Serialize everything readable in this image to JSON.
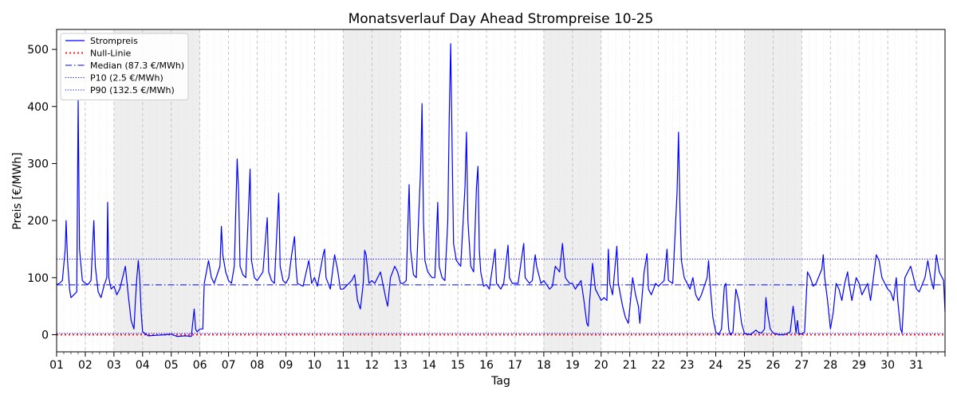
{
  "chart_data": {
    "type": "line",
    "title": "Monatsverlauf Day Ahead Strompreise 10-25",
    "xlabel": "Tag",
    "ylabel": "Preis [€/MWh]",
    "xlim": [
      1,
      32
    ],
    "ylim": [
      -30,
      535
    ],
    "x_tick_labels": [
      "01",
      "02",
      "03",
      "04",
      "05",
      "06",
      "07",
      "08",
      "09",
      "10",
      "11",
      "12",
      "13",
      "14",
      "15",
      "16",
      "17",
      "18",
      "19",
      "20",
      "21",
      "22",
      "23",
      "24",
      "25",
      "26",
      "27",
      "28",
      "29",
      "30",
      "31"
    ],
    "y_ticks": [
      0,
      100,
      200,
      300,
      400,
      500
    ],
    "grid": true,
    "legend_position": "top-left",
    "weekend_spans": [
      [
        3,
        6
      ],
      [
        11,
        13
      ],
      [
        18,
        20
      ],
      [
        25,
        27
      ]
    ],
    "colors": {
      "series": "#0000ff",
      "null_line": "#ff0000",
      "weekend_shade": "#d9d9d9",
      "grid": "#cccccc"
    },
    "reference_lines": [
      {
        "name": "Null-Linie",
        "value": 0,
        "style": "dotted",
        "color": "#ff0000"
      },
      {
        "name": "Median (87.3 €/MWh)",
        "value": 87.3,
        "style": "dashdot",
        "color": "#0000ff"
      },
      {
        "name": "P10 (2.5 €/MWh)",
        "value": 2.5,
        "style": "dotted",
        "color": "#0000ff"
      },
      {
        "name": "P90 (132.5 €/MWh)",
        "value": 132.5,
        "style": "dotted",
        "color": "#0000ff"
      }
    ],
    "series": [
      {
        "name": "Strompreis",
        "points": [
          [
            1.0,
            88
          ],
          [
            1.1,
            90
          ],
          [
            1.2,
            95
          ],
          [
            1.3,
            150
          ],
          [
            1.33,
            200
          ],
          [
            1.38,
            130
          ],
          [
            1.45,
            80
          ],
          [
            1.5,
            65
          ],
          [
            1.6,
            70
          ],
          [
            1.7,
            75
          ],
          [
            1.72,
            200
          ],
          [
            1.75,
            410
          ],
          [
            1.8,
            150
          ],
          [
            1.9,
            95
          ],
          [
            2.0,
            90
          ],
          [
            2.1,
            88
          ],
          [
            2.2,
            95
          ],
          [
            2.3,
            200
          ],
          [
            2.35,
            120
          ],
          [
            2.45,
            75
          ],
          [
            2.55,
            65
          ],
          [
            2.65,
            85
          ],
          [
            2.75,
            100
          ],
          [
            2.78,
            232
          ],
          [
            2.82,
            100
          ],
          [
            2.9,
            80
          ],
          [
            3.0,
            85
          ],
          [
            3.1,
            70
          ],
          [
            3.2,
            80
          ],
          [
            3.3,
            100
          ],
          [
            3.4,
            120
          ],
          [
            3.5,
            70
          ],
          [
            3.6,
            25
          ],
          [
            3.7,
            10
          ],
          [
            3.75,
            60
          ],
          [
            3.8,
            100
          ],
          [
            3.85,
            130
          ],
          [
            3.9,
            100
          ],
          [
            3.95,
            40
          ],
          [
            4.0,
            5
          ],
          [
            4.2,
            -2
          ],
          [
            4.5,
            -1
          ],
          [
            4.8,
            0
          ],
          [
            5.0,
            1
          ],
          [
            5.2,
            -3
          ],
          [
            5.5,
            -2
          ],
          [
            5.7,
            -3
          ],
          [
            5.8,
            45
          ],
          [
            5.85,
            10
          ],
          [
            5.9,
            5
          ],
          [
            6.0,
            10
          ],
          [
            6.1,
            10
          ],
          [
            6.15,
            90
          ],
          [
            6.3,
            130
          ],
          [
            6.4,
            100
          ],
          [
            6.5,
            90
          ],
          [
            6.7,
            120
          ],
          [
            6.75,
            190
          ],
          [
            6.8,
            140
          ],
          [
            6.9,
            110
          ],
          [
            7.0,
            95
          ],
          [
            7.1,
            90
          ],
          [
            7.2,
            120
          ],
          [
            7.3,
            308
          ],
          [
            7.35,
            250
          ],
          [
            7.4,
            120
          ],
          [
            7.5,
            105
          ],
          [
            7.6,
            100
          ],
          [
            7.75,
            290
          ],
          [
            7.8,
            130
          ],
          [
            7.9,
            100
          ],
          [
            8.0,
            95
          ],
          [
            8.2,
            110
          ],
          [
            8.35,
            205
          ],
          [
            8.4,
            110
          ],
          [
            8.5,
            95
          ],
          [
            8.6,
            90
          ],
          [
            8.75,
            248
          ],
          [
            8.8,
            120
          ],
          [
            8.9,
            95
          ],
          [
            9.0,
            90
          ],
          [
            9.1,
            100
          ],
          [
            9.2,
            140
          ],
          [
            9.3,
            172
          ],
          [
            9.35,
            120
          ],
          [
            9.4,
            90
          ],
          [
            9.6,
            85
          ],
          [
            9.8,
            130
          ],
          [
            9.9,
            90
          ],
          [
            10.0,
            100
          ],
          [
            10.1,
            85
          ],
          [
            10.3,
            140
          ],
          [
            10.35,
            150
          ],
          [
            10.4,
            100
          ],
          [
            10.55,
            80
          ],
          [
            10.7,
            140
          ],
          [
            10.8,
            115
          ],
          [
            10.9,
            80
          ],
          [
            11.0,
            80
          ],
          [
            11.1,
            85
          ],
          [
            11.2,
            90
          ],
          [
            11.3,
            95
          ],
          [
            11.4,
            105
          ],
          [
            11.5,
            60
          ],
          [
            11.6,
            45
          ],
          [
            11.7,
            90
          ],
          [
            11.75,
            148
          ],
          [
            11.8,
            140
          ],
          [
            11.9,
            90
          ],
          [
            12.0,
            95
          ],
          [
            12.1,
            90
          ],
          [
            12.2,
            100
          ],
          [
            12.3,
            110
          ],
          [
            12.5,
            60
          ],
          [
            12.55,
            50
          ],
          [
            12.65,
            100
          ],
          [
            12.8,
            120
          ],
          [
            12.9,
            110
          ],
          [
            13.0,
            90
          ],
          [
            13.1,
            90
          ],
          [
            13.2,
            95
          ],
          [
            13.3,
            263
          ],
          [
            13.35,
            150
          ],
          [
            13.45,
            105
          ],
          [
            13.55,
            100
          ],
          [
            13.7,
            290
          ],
          [
            13.75,
            405
          ],
          [
            13.8,
            200
          ],
          [
            13.85,
            130
          ],
          [
            13.95,
            110
          ],
          [
            14.1,
            100
          ],
          [
            14.2,
            100
          ],
          [
            14.3,
            232
          ],
          [
            14.35,
            120
          ],
          [
            14.45,
            100
          ],
          [
            14.55,
            95
          ],
          [
            14.65,
            200
          ],
          [
            14.7,
            380
          ],
          [
            14.75,
            510
          ],
          [
            14.8,
            330
          ],
          [
            14.85,
            160
          ],
          [
            14.95,
            130
          ],
          [
            15.1,
            120
          ],
          [
            15.25,
            260
          ],
          [
            15.3,
            355
          ],
          [
            15.35,
            200
          ],
          [
            15.45,
            120
          ],
          [
            15.55,
            110
          ],
          [
            15.65,
            260
          ],
          [
            15.7,
            295
          ],
          [
            15.75,
            150
          ],
          [
            15.8,
            110
          ],
          [
            15.9,
            85
          ],
          [
            16.0,
            88
          ],
          [
            16.1,
            80
          ],
          [
            16.3,
            150
          ],
          [
            16.35,
            90
          ],
          [
            16.5,
            80
          ],
          [
            16.6,
            90
          ],
          [
            16.75,
            157
          ],
          [
            16.8,
            100
          ],
          [
            16.9,
            90
          ],
          [
            17.1,
            90
          ],
          [
            17.3,
            160
          ],
          [
            17.35,
            100
          ],
          [
            17.5,
            90
          ],
          [
            17.6,
            95
          ],
          [
            17.7,
            140
          ],
          [
            17.75,
            120
          ],
          [
            17.9,
            90
          ],
          [
            18.0,
            95
          ],
          [
            18.2,
            80
          ],
          [
            18.3,
            85
          ],
          [
            18.4,
            120
          ],
          [
            18.55,
            110
          ],
          [
            18.65,
            160
          ],
          [
            18.75,
            100
          ],
          [
            18.9,
            90
          ],
          [
            19.0,
            90
          ],
          [
            19.1,
            80
          ],
          [
            19.3,
            95
          ],
          [
            19.4,
            60
          ],
          [
            19.5,
            20
          ],
          [
            19.55,
            15
          ],
          [
            19.6,
            60
          ],
          [
            19.7,
            125
          ],
          [
            19.8,
            80
          ],
          [
            19.9,
            70
          ],
          [
            20.0,
            60
          ],
          [
            20.1,
            65
          ],
          [
            20.2,
            60
          ],
          [
            20.25,
            150
          ],
          [
            20.3,
            90
          ],
          [
            20.4,
            70
          ],
          [
            20.55,
            155
          ],
          [
            20.6,
            90
          ],
          [
            20.75,
            50
          ],
          [
            20.85,
            30
          ],
          [
            20.95,
            20
          ],
          [
            21.1,
            100
          ],
          [
            21.2,
            70
          ],
          [
            21.3,
            50
          ],
          [
            21.35,
            20
          ],
          [
            21.5,
            110
          ],
          [
            21.6,
            142
          ],
          [
            21.65,
            80
          ],
          [
            21.75,
            70
          ],
          [
            21.9,
            90
          ],
          [
            22.0,
            85
          ],
          [
            22.1,
            90
          ],
          [
            22.2,
            95
          ],
          [
            22.3,
            150
          ],
          [
            22.35,
            95
          ],
          [
            22.5,
            90
          ],
          [
            22.65,
            250
          ],
          [
            22.7,
            355
          ],
          [
            22.75,
            220
          ],
          [
            22.8,
            130
          ],
          [
            22.9,
            100
          ],
          [
            23.0,
            90
          ],
          [
            23.1,
            80
          ],
          [
            23.2,
            100
          ],
          [
            23.3,
            70
          ],
          [
            23.4,
            60
          ],
          [
            23.5,
            70
          ],
          [
            23.7,
            100
          ],
          [
            23.75,
            130
          ],
          [
            23.8,
            90
          ],
          [
            23.9,
            30
          ],
          [
            24.0,
            5
          ],
          [
            24.1,
            0
          ],
          [
            24.2,
            10
          ],
          [
            24.3,
            85
          ],
          [
            24.35,
            90
          ],
          [
            24.45,
            10
          ],
          [
            24.5,
            0
          ],
          [
            24.6,
            5
          ],
          [
            24.7,
            80
          ],
          [
            24.8,
            60
          ],
          [
            24.9,
            20
          ],
          [
            25.0,
            2
          ],
          [
            25.2,
            0
          ],
          [
            25.4,
            8
          ],
          [
            25.5,
            4
          ],
          [
            25.6,
            3
          ],
          [
            25.7,
            10
          ],
          [
            25.75,
            65
          ],
          [
            25.8,
            40
          ],
          [
            25.9,
            10
          ],
          [
            26.0,
            3
          ],
          [
            26.2,
            0
          ],
          [
            26.4,
            0
          ],
          [
            26.6,
            5
          ],
          [
            26.7,
            50
          ],
          [
            26.75,
            30
          ],
          [
            26.8,
            3
          ],
          [
            26.85,
            25
          ],
          [
            26.9,
            2
          ],
          [
            27.0,
            1
          ],
          [
            27.1,
            5
          ],
          [
            27.2,
            110
          ],
          [
            27.3,
            100
          ],
          [
            27.4,
            85
          ],
          [
            27.5,
            90
          ],
          [
            27.7,
            115
          ],
          [
            27.75,
            140
          ],
          [
            27.8,
            100
          ],
          [
            27.9,
            60
          ],
          [
            28.0,
            10
          ],
          [
            28.1,
            40
          ],
          [
            28.2,
            90
          ],
          [
            28.3,
            80
          ],
          [
            28.4,
            60
          ],
          [
            28.5,
            90
          ],
          [
            28.6,
            110
          ],
          [
            28.65,
            90
          ],
          [
            28.75,
            60
          ],
          [
            28.9,
            100
          ],
          [
            29.0,
            90
          ],
          [
            29.1,
            70
          ],
          [
            29.2,
            80
          ],
          [
            29.3,
            90
          ],
          [
            29.4,
            60
          ],
          [
            29.5,
            100
          ],
          [
            29.6,
            140
          ],
          [
            29.7,
            130
          ],
          [
            29.8,
            100
          ],
          [
            29.9,
            90
          ],
          [
            30.0,
            80
          ],
          [
            30.1,
            75
          ],
          [
            30.2,
            60
          ],
          [
            30.3,
            100
          ],
          [
            30.35,
            60
          ],
          [
            30.45,
            10
          ],
          [
            30.5,
            3
          ],
          [
            30.6,
            100
          ],
          [
            30.7,
            110
          ],
          [
            30.8,
            120
          ],
          [
            30.9,
            100
          ],
          [
            31.0,
            80
          ],
          [
            31.1,
            75
          ],
          [
            31.3,
            100
          ],
          [
            31.4,
            130
          ],
          [
            31.5,
            100
          ],
          [
            31.6,
            80
          ],
          [
            31.7,
            140
          ],
          [
            31.8,
            110
          ],
          [
            31.9,
            100
          ],
          [
            31.95,
            95
          ],
          [
            32.0,
            40
          ]
        ]
      }
    ]
  }
}
